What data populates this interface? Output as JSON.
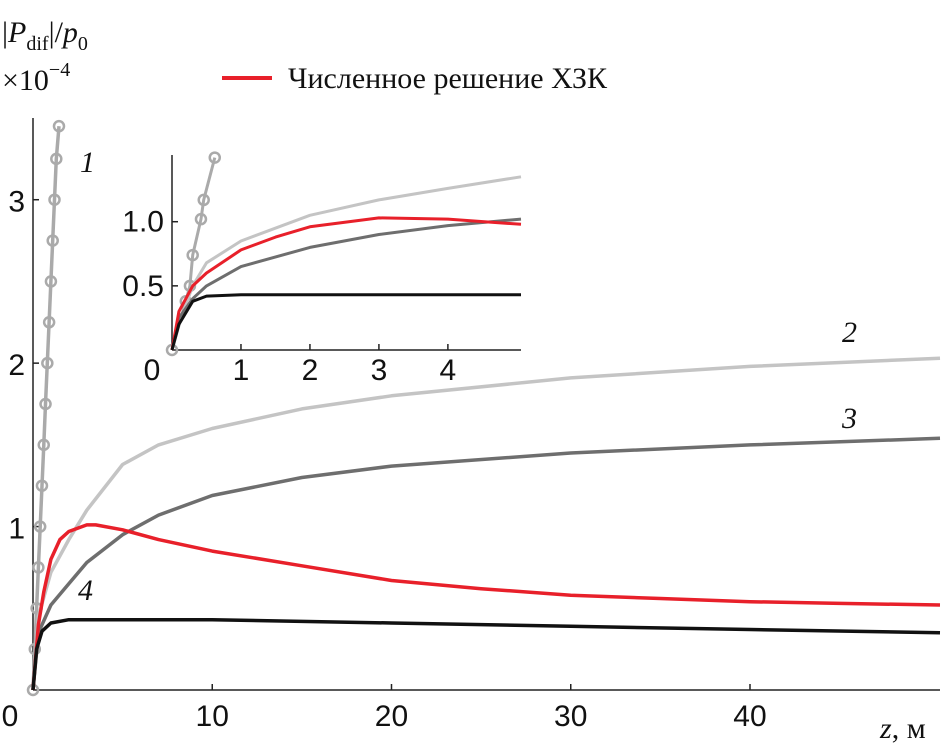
{
  "chart_data": [
    {
      "type": "line",
      "ylabel": [
        "|",
        "P",
        "dif",
        "|/",
        "p",
        "0"
      ],
      "y_multiplier": [
        "×10",
        "−4"
      ],
      "xlabel": [
        "z",
        ", м"
      ],
      "xlim": [
        0,
        50.6
      ],
      "ylim": [
        0,
        3.5
      ],
      "xticks": [
        0,
        10,
        20,
        30,
        40
      ],
      "yticks": [
        1,
        2,
        3
      ],
      "series": [
        {
          "name": "1",
          "color": "#aaaaaa",
          "markers": true,
          "x": [
            0,
            0.1,
            0.2,
            0.3,
            0.4,
            0.5,
            0.6,
            0.7,
            0.8,
            0.9,
            1.0,
            1.1,
            1.2,
            1.3,
            1.45
          ],
          "values": [
            0,
            0.25,
            0.5,
            0.75,
            1.0,
            1.25,
            1.5,
            1.75,
            2.0,
            2.25,
            2.5,
            2.75,
            3.0,
            3.25,
            3.45
          ]
        },
        {
          "name": "2",
          "color": "#c4c4c4",
          "x": [
            0,
            0.3,
            1,
            2,
            3,
            5,
            7,
            10,
            15,
            20,
            30,
            40,
            50.6
          ],
          "values": [
            0,
            0.45,
            0.72,
            0.92,
            1.1,
            1.38,
            1.5,
            1.6,
            1.72,
            1.8,
            1.91,
            1.98,
            2.03
          ]
        },
        {
          "name": "3",
          "color": "#6e6e6e",
          "x": [
            0,
            0.3,
            1,
            2,
            3,
            5,
            7,
            10,
            15,
            20,
            30,
            40,
            50.6
          ],
          "values": [
            0,
            0.35,
            0.52,
            0.65,
            0.78,
            0.95,
            1.07,
            1.19,
            1.3,
            1.37,
            1.45,
            1.5,
            1.54
          ]
        },
        {
          "name": "Численное решение ХЗК",
          "color": "#e8202a",
          "x": [
            0,
            0.3,
            0.6,
            1,
            1.5,
            2,
            3,
            3.5,
            5,
            7,
            10,
            15,
            20,
            25,
            30,
            35,
            40,
            45,
            50.6
          ],
          "values": [
            0,
            0.4,
            0.6,
            0.8,
            0.92,
            0.97,
            1.01,
            1.01,
            0.98,
            0.92,
            0.85,
            0.76,
            0.67,
            0.62,
            0.58,
            0.56,
            0.54,
            0.53,
            0.52
          ]
        },
        {
          "name": "4",
          "color": "#111111",
          "x": [
            0,
            0.2,
            0.5,
            1,
            2,
            5,
            10,
            20,
            30,
            40,
            50.6
          ],
          "values": [
            0,
            0.25,
            0.36,
            0.41,
            0.43,
            0.43,
            0.43,
            0.41,
            0.39,
            0.37,
            0.35
          ]
        }
      ]
    },
    {
      "type": "line",
      "xlim": [
        0,
        5.06
      ],
      "ylim": [
        0,
        1.52
      ],
      "xticks": [
        0,
        1,
        2,
        3,
        4
      ],
      "yticks": [
        0.5,
        {
          "value": 1,
          "label": "1.0"
        }
      ],
      "series": [
        {
          "color": "#aaaaaa",
          "markers": true,
          "x": [
            0,
            0.2,
            0.26,
            0.3,
            0.42,
            0.46,
            0.62
          ],
          "values": [
            0,
            0.38,
            0.5,
            0.74,
            1.02,
            1.17,
            1.5
          ]
        },
        {
          "color": "#c4c4c4",
          "x": [
            0,
            0.1,
            0.3,
            0.5,
            1,
            2,
            3,
            4,
            5.06
          ],
          "values": [
            0,
            0.2,
            0.5,
            0.68,
            0.85,
            1.05,
            1.17,
            1.26,
            1.35
          ]
        },
        {
          "color": "#6e6e6e",
          "x": [
            0,
            0.1,
            0.3,
            0.5,
            1,
            2,
            3,
            4,
            5.06
          ],
          "values": [
            0,
            0.25,
            0.4,
            0.5,
            0.65,
            0.8,
            0.9,
            0.97,
            1.02
          ]
        },
        {
          "color": "#e8202a",
          "x": [
            0,
            0.1,
            0.3,
            0.5,
            1,
            1.5,
            2,
            3,
            4,
            5.06
          ],
          "values": [
            0,
            0.3,
            0.5,
            0.6,
            0.78,
            0.88,
            0.96,
            1.03,
            1.02,
            0.98
          ]
        },
        {
          "color": "#111111",
          "x": [
            0,
            0.1,
            0.3,
            0.5,
            1,
            2,
            3,
            4,
            5.06
          ],
          "values": [
            0,
            0.2,
            0.38,
            0.42,
            0.43,
            0.43,
            0.43,
            0.43,
            0.43
          ]
        }
      ]
    }
  ]
}
